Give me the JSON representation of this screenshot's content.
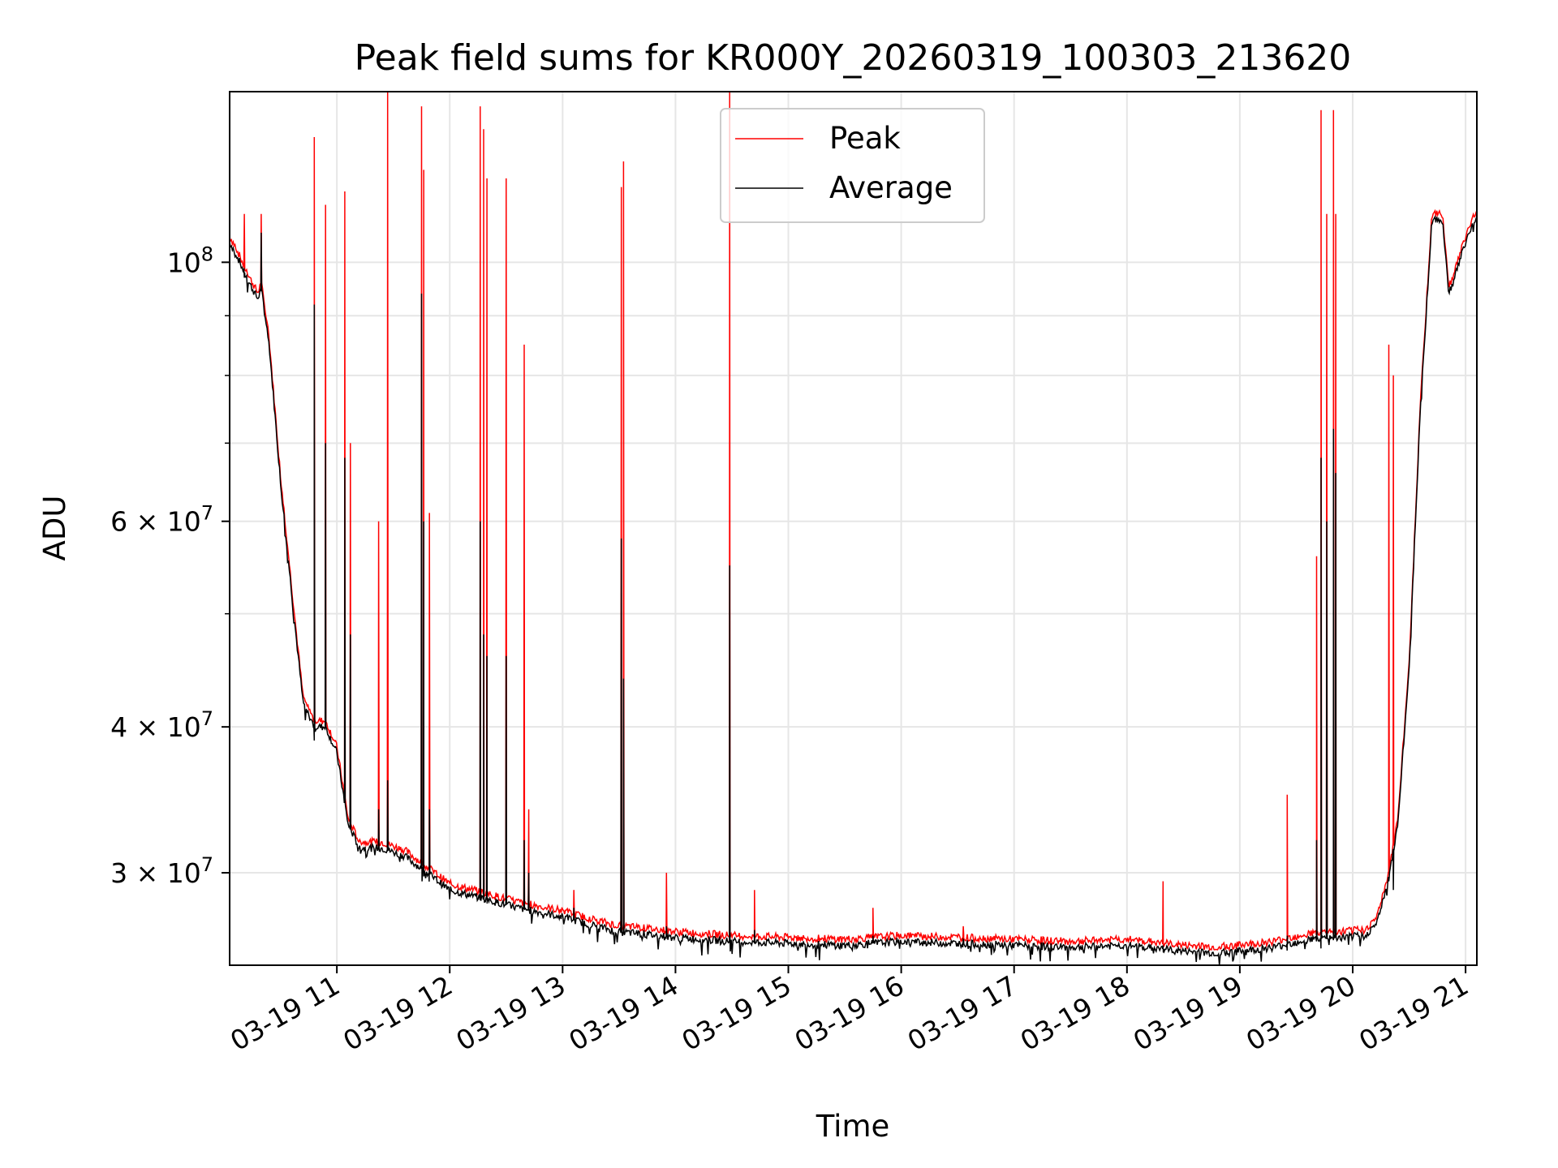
{
  "chart_data": {
    "type": "line",
    "title": "Peak field sums for KR000Y_20260319_100303_213620",
    "xlabel": "Time",
    "ylabel": "ADU",
    "yscale": "log",
    "xlim": [
      10.05,
      21.1
    ],
    "ylim": [
      25000000,
      140000000
    ],
    "grid": true,
    "legend_position": "top-center",
    "x_ticks": [
      {
        "value": 11,
        "label": "03-19 11"
      },
      {
        "value": 12,
        "label": "03-19 12"
      },
      {
        "value": 13,
        "label": "03-19 13"
      },
      {
        "value": 14,
        "label": "03-19 14"
      },
      {
        "value": 15,
        "label": "03-19 15"
      },
      {
        "value": 16,
        "label": "03-19 16"
      },
      {
        "value": 17,
        "label": "03-19 17"
      },
      {
        "value": 18,
        "label": "03-19 18"
      },
      {
        "value": 19,
        "label": "03-19 19"
      },
      {
        "value": 20,
        "label": "03-19 20"
      },
      {
        "value": 21,
        "label": "03-19 21"
      }
    ],
    "y_ticks": [
      {
        "value": 30000000,
        "base": "3 × 10",
        "exp": "7"
      },
      {
        "value": 40000000,
        "base": "4 × 10",
        "exp": "7"
      },
      {
        "value": 60000000,
        "base": "6 × 10",
        "exp": "7"
      },
      {
        "value": 100000000,
        "base": "10",
        "exp": "8"
      }
    ],
    "y_minor_ticks": [
      50000000,
      70000000,
      80000000,
      90000000
    ],
    "baseline": {
      "x": [
        10.05,
        10.1,
        10.2,
        10.3,
        10.33,
        10.4,
        10.5,
        10.6,
        10.7,
        10.8,
        10.9,
        11.0,
        11.1,
        11.2,
        11.4,
        11.6,
        11.8,
        12.0,
        12.3,
        12.6,
        13.0,
        13.3,
        13.5,
        13.7,
        14.0,
        14.5,
        15.0,
        15.5,
        16.0,
        16.5,
        17.0,
        17.5,
        18.0,
        18.5,
        18.8,
        19.0,
        19.3,
        19.6,
        19.9,
        20.1,
        20.2,
        20.3,
        20.4,
        20.5,
        20.6,
        20.7,
        20.75,
        20.8,
        20.85,
        20.9,
        21.0,
        21.1
      ],
      "y": [
        104000000,
        102000000,
        97000000,
        93000000,
        95000000,
        85000000,
        65000000,
        52000000,
        42000000,
        40000000,
        40000000,
        38000000,
        33000000,
        31500000,
        31500000,
        31000000,
        30000000,
        29000000,
        28500000,
        28000000,
        27500000,
        27000000,
        26700000,
        26600000,
        26400000,
        26200000,
        26100000,
        26000000,
        26200000,
        26100000,
        26000000,
        25900000,
        26000000,
        25700000,
        25600000,
        25700000,
        25900000,
        26300000,
        26400000,
        26500000,
        27000000,
        29000000,
        33000000,
        45000000,
        75000000,
        108000000,
        109000000,
        108000000,
        94000000,
        97000000,
        104000000,
        110000000
      ]
    },
    "spikes": [
      {
        "x": 10.18,
        "peak": 110000000,
        "avg": 97000000
      },
      {
        "x": 10.33,
        "peak": 110000000,
        "avg": 106000000
      },
      {
        "x": 10.8,
        "peak": 128000000,
        "avg": 92000000
      },
      {
        "x": 10.9,
        "peak": 112000000,
        "avg": 70000000
      },
      {
        "x": 11.07,
        "peak": 115000000,
        "avg": 68000000
      },
      {
        "x": 11.12,
        "peak": 70000000,
        "avg": 48000000
      },
      {
        "x": 11.37,
        "peak": 60000000,
        "avg": 34000000
      },
      {
        "x": 11.45,
        "peak": 140000000,
        "avg": 36000000
      },
      {
        "x": 11.75,
        "peak": 136000000,
        "avg": 94000000
      },
      {
        "x": 11.77,
        "peak": 120000000,
        "avg": 60000000
      },
      {
        "x": 11.82,
        "peak": 61000000,
        "avg": 34000000
      },
      {
        "x": 12.27,
        "peak": 136000000,
        "avg": 60000000
      },
      {
        "x": 12.3,
        "peak": 130000000,
        "avg": 48000000
      },
      {
        "x": 12.33,
        "peak": 118000000,
        "avg": 46000000
      },
      {
        "x": 12.5,
        "peak": 118000000,
        "avg": 46000000
      },
      {
        "x": 12.66,
        "peak": 85000000,
        "avg": 32000000
      },
      {
        "x": 12.7,
        "peak": 34000000,
        "avg": 30000000
      },
      {
        "x": 13.1,
        "peak": 29000000,
        "avg": 28000000
      },
      {
        "x": 13.52,
        "peak": 116000000,
        "avg": 58000000
      },
      {
        "x": 13.54,
        "peak": 122000000,
        "avg": 44000000
      },
      {
        "x": 13.92,
        "peak": 30000000,
        "avg": 27000000
      },
      {
        "x": 14.48,
        "peak": 140000000,
        "avg": 55000000
      },
      {
        "x": 14.7,
        "peak": 29000000,
        "avg": 26800000
      },
      {
        "x": 15.75,
        "peak": 28000000,
        "avg": 26500000
      },
      {
        "x": 16.55,
        "peak": 27000000,
        "avg": 26300000
      },
      {
        "x": 18.32,
        "peak": 29500000,
        "avg": 26000000
      },
      {
        "x": 19.42,
        "peak": 35000000,
        "avg": 26500000
      },
      {
        "x": 19.68,
        "peak": 56000000,
        "avg": 32000000
      },
      {
        "x": 19.72,
        "peak": 135000000,
        "avg": 68000000
      },
      {
        "x": 19.77,
        "peak": 110000000,
        "avg": 60000000
      },
      {
        "x": 19.83,
        "peak": 135000000,
        "avg": 72000000
      },
      {
        "x": 19.85,
        "peak": 110000000,
        "avg": 66000000
      },
      {
        "x": 20.32,
        "peak": 85000000,
        "avg": 29500000
      },
      {
        "x": 20.36,
        "peak": 80000000,
        "avg": 29000000
      }
    ],
    "series": [
      {
        "name": "Peak",
        "color": "#ff0000"
      },
      {
        "name": "Average",
        "color": "#000000"
      }
    ]
  }
}
